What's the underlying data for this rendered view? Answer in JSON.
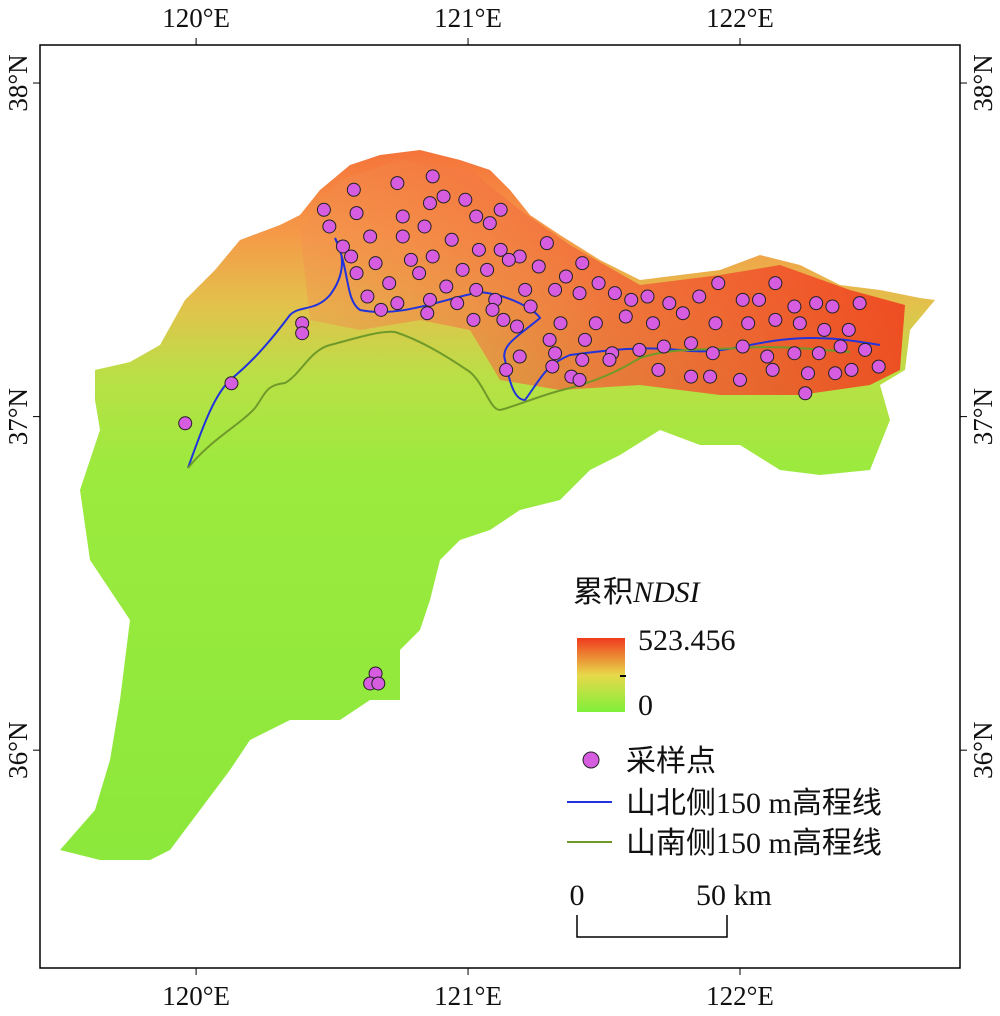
{
  "map": {
    "lonlim": [
      119.426,
      122.809
    ],
    "latlim": [
      35.347,
      38.114
    ],
    "lon_ticks": [
      {
        "value": 120,
        "label": "120°E"
      },
      {
        "value": 121,
        "label": "121°E"
      },
      {
        "value": 122,
        "label": "122°E"
      }
    ],
    "lat_ticks": [
      {
        "value": 36,
        "label": "36°N"
      },
      {
        "value": 37,
        "label": "37°N"
      },
      {
        "value": 38,
        "label": "38°N"
      }
    ],
    "legend": {
      "title": [
        "累积",
        "NDSI"
      ],
      "colorbar_max": 523.456,
      "colorbar_min": 0,
      "high_color": "#f03a1e",
      "low_color": "#7ff03a"
    },
    "points": {
      "name": "采样点",
      "color": "#d65ce0",
      "lon": [
        120.47,
        120.58,
        120.74,
        120.87,
        120.99,
        120.91,
        121.12,
        120.49,
        120.59,
        120.76,
        120.86,
        121.08,
        121.03,
        120.54,
        120.64,
        120.76,
        120.84,
        120.94,
        121.04,
        121.12,
        121.19,
        121.29,
        120.57,
        120.66,
        120.79,
        120.87,
        120.98,
        121.07,
        121.15,
        121.26,
        121.36,
        121.42,
        121.48,
        120.59,
        120.71,
        120.82,
        120.92,
        121.03,
        121.1,
        121.21,
        121.32,
        121.41,
        121.54,
        121.6,
        121.66,
        121.74,
        121.85,
        121.92,
        122.01,
        122.07,
        122.13,
        122.2,
        122.28,
        122.34,
        122.44,
        120.63,
        120.74,
        120.86,
        120.96,
        121.09,
        121.23,
        121.34,
        121.47,
        121.58,
        121.68,
        121.79,
        121.91,
        122.03,
        122.13,
        122.22,
        122.31,
        122.4,
        120.68,
        120.85,
        121.02,
        121.13,
        121.18,
        121.3,
        121.43,
        121.53,
        121.63,
        121.72,
        121.82,
        121.9,
        122.01,
        122.1,
        122.2,
        122.29,
        122.37,
        122.46,
        121.19,
        121.32,
        121.42,
        121.52,
        121.7,
        121.82,
        121.89,
        122.0,
        122.12,
        122.25,
        122.35,
        122.41,
        122.51,
        121.14,
        121.31,
        121.38,
        121.41,
        122.24,
        120.39,
        120.39,
        120.13,
        119.96,
        120.66,
        120.64,
        120.67
      ],
      "lat": [
        37.62,
        37.68,
        37.7,
        37.72,
        37.65,
        37.66,
        37.62,
        37.57,
        37.61,
        37.6,
        37.64,
        37.58,
        37.6,
        37.51,
        37.54,
        37.54,
        37.57,
        37.53,
        37.5,
        37.5,
        37.48,
        37.52,
        37.48,
        37.46,
        37.47,
        37.48,
        37.44,
        37.44,
        37.47,
        37.45,
        37.42,
        37.46,
        37.4,
        37.43,
        37.4,
        37.43,
        37.39,
        37.38,
        37.35,
        37.38,
        37.38,
        37.37,
        37.37,
        37.35,
        37.36,
        37.34,
        37.36,
        37.4,
        37.35,
        37.35,
        37.4,
        37.33,
        37.34,
        37.33,
        37.34,
        37.36,
        37.34,
        37.35,
        37.34,
        37.32,
        37.33,
        37.28,
        37.28,
        37.3,
        37.28,
        37.31,
        37.28,
        37.28,
        37.29,
        37.28,
        37.26,
        37.26,
        37.32,
        37.31,
        37.29,
        37.29,
        37.27,
        37.23,
        37.23,
        37.19,
        37.2,
        37.21,
        37.22,
        37.19,
        37.21,
        37.18,
        37.19,
        37.19,
        37.21,
        37.2,
        37.18,
        37.19,
        37.17,
        37.17,
        37.14,
        37.12,
        37.12,
        37.11,
        37.14,
        37.13,
        37.13,
        37.14,
        37.15,
        37.14,
        37.15,
        37.12,
        37.11,
        37.07,
        37.28,
        37.25,
        37.1,
        36.98,
        36.23,
        36.2,
        36.2
      ]
    },
    "north_line": {
      "name": "山北侧150 m高程线",
      "color": "#2233dd"
    },
    "south_line": {
      "name": "山南侧150 m高程线",
      "color": "#6f9a2a"
    },
    "scale_bar": {
      "labels": [
        "0",
        "50 km"
      ]
    }
  }
}
